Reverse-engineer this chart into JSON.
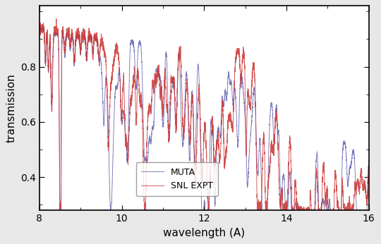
{
  "xlim": [
    8,
    16
  ],
  "ylim": [
    0.28,
    1.02
  ],
  "xlabel": "wavelength (A)",
  "ylabel": "transmission",
  "xticks": [
    8,
    10,
    12,
    14,
    16
  ],
  "yticks": [
    0.4,
    0.6,
    0.8
  ],
  "muta_color": "#7777bb",
  "expt_color": "#cc3333",
  "muta_label": "MUTA",
  "expt_label": "SNL EXPT",
  "bg_color": "#ffffff",
  "spine_color": "#000000",
  "figsize": [
    5.4,
    3.46
  ],
  "dpi": 100
}
